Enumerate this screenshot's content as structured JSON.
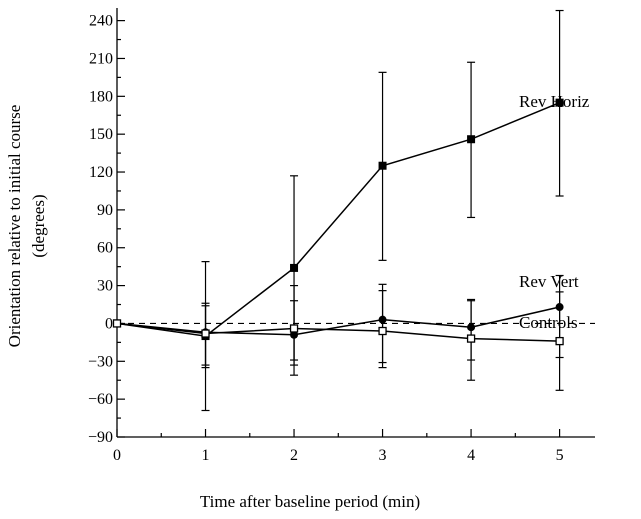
{
  "chart_data": {
    "type": "line",
    "title": "",
    "xlabel": "Time after baseline period (min)",
    "ylabel_lines": [
      "Orientation relative to initial course",
      "(degrees)"
    ],
    "xlim": [
      0,
      5.4
    ],
    "ylim": [
      -90,
      250
    ],
    "x_ticks": [
      0,
      1,
      2,
      3,
      4,
      5
    ],
    "y_ticks": [
      -90,
      -60,
      -30,
      0,
      30,
      60,
      90,
      120,
      150,
      180,
      210,
      240
    ],
    "y_minor_step": 15,
    "x_minor_step": 0.5,
    "reference_line": {
      "y": 0,
      "style": "dashed"
    },
    "grid": false,
    "legend": "direct labels at line ends",
    "series": [
      {
        "name": "Rev Horiz",
        "marker": "filled-square",
        "x": [
          0,
          1,
          2,
          3,
          4,
          5
        ],
        "y": [
          0,
          -10,
          44,
          125,
          146,
          175
        ],
        "err_low": [
          0,
          -69,
          -29,
          50,
          84,
          101
        ],
        "err_high": [
          0,
          49,
          117,
          199,
          207,
          248
        ]
      },
      {
        "name": "Rev Vert",
        "marker": "filled-circle",
        "x": [
          0,
          1,
          2,
          3,
          4,
          5
        ],
        "y": [
          0,
          -7,
          -9,
          3,
          -3,
          13
        ],
        "err_low": [
          0,
          -33,
          -41,
          -31,
          -29,
          -27
        ],
        "err_high": [
          0,
          16,
          30,
          31,
          19,
          38
        ]
      },
      {
        "name": "Controls",
        "marker": "open-square",
        "x": [
          0,
          1,
          2,
          3,
          4,
          5
        ],
        "y": [
          0,
          -8,
          -4,
          -6,
          -12,
          -14
        ],
        "err_low": [
          0,
          -35,
          -33,
          -35,
          -45,
          -53
        ],
        "err_high": [
          0,
          14,
          18,
          26,
          18,
          25
        ]
      }
    ]
  }
}
